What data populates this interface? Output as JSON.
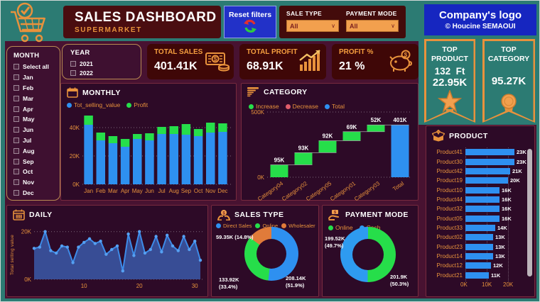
{
  "header": {
    "title": "SALES DASHBOARD",
    "subtitle": "SUPERMARKET",
    "reset_button": "Reset filters",
    "sale_type_label": "SALE TYPE",
    "sale_type_value": "All",
    "payment_mode_label": "PAYMENT MODE",
    "payment_mode_value": "All",
    "company": "Company's logo",
    "author": "© Houcine SEMAOUI"
  },
  "slicers": {
    "month": {
      "title": "MONTH",
      "items": [
        "Select all",
        "Jan",
        "Feb",
        "Mar",
        "Apr",
        "May",
        "Jun",
        "Jul",
        "Aug",
        "Sep",
        "Oct",
        "Nov",
        "Dec"
      ]
    },
    "year": {
      "title": "YEAR",
      "items": [
        "2021",
        "2022"
      ]
    }
  },
  "kpis": [
    {
      "label": "TOTAL SALES",
      "value": "401.41K",
      "icon": "money-banknote-icon"
    },
    {
      "label": "TOTAL PROFIT",
      "value": "68.91K",
      "icon": "growth-chart-icon"
    },
    {
      "label": "PROFIT %",
      "value": "21 %",
      "icon": "piggy-bank-icon"
    }
  ],
  "banners": {
    "top_product": {
      "title": "TOP PRODUCT",
      "line1": "132  Ft",
      "line2": "22.95K",
      "icon": "trophy-star-icon"
    },
    "top_category": {
      "title": "TOP CATEGORY",
      "value": "95.27K",
      "icon": "medal-icon"
    }
  },
  "colors": {
    "teal": "#2C7B73",
    "page_bg": "#481231",
    "panel_bg": "#2D0A27",
    "accent_orange": "#E8923C",
    "bar_blue": "#2E90F0",
    "bar_green": "#26DE4A",
    "decrease_red": "#E05C6A",
    "donut_orange": "#E07B3A",
    "area_blue": "#39549E",
    "reset_blue": "#2231C8",
    "logo_blue": "#1626C0",
    "card_bg": "#3F0707",
    "kpi_label_orange": "#F59E3F"
  },
  "chart_data": [
    {
      "id": "monthly",
      "type": "bar",
      "stacked": true,
      "title": "MONTHLY",
      "categories": [
        "Jan",
        "Feb",
        "Mar",
        "Apr",
        "May",
        "Jun",
        "Jul",
        "Aug",
        "Sep",
        "Oct",
        "Nov",
        "Dec"
      ],
      "series": [
        {
          "name": "Tot_selling_value",
          "color": "#2E90F0",
          "values": [
            42,
            31,
            29,
            26.5,
            32,
            31,
            35.5,
            35.5,
            35,
            34,
            36.5,
            37
          ]
        },
        {
          "name": "Profit",
          "color": "#26DE4A",
          "values": [
            6.5,
            5.5,
            5,
            5.5,
            3.5,
            5,
            5,
            5.5,
            7.5,
            5,
            7,
            6
          ]
        }
      ],
      "unit": "K",
      "ymax": 50,
      "yticks": [
        0,
        20,
        40
      ],
      "grid": "dotted",
      "legend_position": "top"
    },
    {
      "id": "category",
      "type": "waterfall",
      "title": "CATEGORY",
      "legend": [
        {
          "name": "Increase",
          "color": "#26DE4A"
        },
        {
          "name": "Decrease",
          "color": "#E05C6A"
        },
        {
          "name": "Total",
          "color": "#2E90F0"
        }
      ],
      "categories": [
        "Category04",
        "Category02",
        "Category05",
        "Category01",
        "Category03",
        "Total"
      ],
      "values": [
        95,
        93,
        92,
        69,
        52,
        401
      ],
      "labels": [
        "95K",
        "93K",
        "92K",
        "69K",
        "52K",
        "401K"
      ],
      "unit": "K",
      "ymax": 500,
      "yticks": [
        0,
        500
      ],
      "grid": "dotted"
    },
    {
      "id": "product",
      "type": "bar-horizontal",
      "title": "PRODUCT",
      "categories": [
        "Product41",
        "Product30",
        "Product42",
        "Product19",
        "Product10",
        "Product44",
        "Product32",
        "Product05",
        "Product33",
        "Product02",
        "Product23",
        "Product14",
        "Product12",
        "Product21"
      ],
      "values": [
        23,
        23,
        21,
        20,
        16,
        16,
        16,
        16,
        14,
        13,
        13,
        13,
        12,
        11
      ],
      "labels": [
        "23K",
        "23K",
        "21K",
        "20K",
        "16K",
        "16K",
        "16K",
        "16K",
        "14K",
        "13K",
        "13K",
        "13K",
        "12K",
        "11K"
      ],
      "bar_color": "#2E90F0",
      "xticks": [
        0,
        10,
        20
      ],
      "xtick_labels": [
        "0K",
        "10K",
        "20K"
      ],
      "xmax": 26,
      "scrollbar": true
    },
    {
      "id": "daily",
      "type": "line-area",
      "title": "DAILY",
      "ylabel": "Total selling value",
      "x": [
        1,
        2,
        3,
        4,
        5,
        6,
        7,
        8,
        9,
        10,
        11,
        12,
        13,
        14,
        15,
        16,
        17,
        18,
        19,
        20,
        21,
        22,
        23,
        24,
        25,
        26,
        27,
        28,
        29,
        30,
        31
      ],
      "values": [
        13,
        13.5,
        20,
        12,
        11,
        14,
        13.5,
        7,
        13.5,
        15.5,
        17,
        15,
        16,
        10.5,
        12.5,
        14,
        3.5,
        19,
        10,
        20,
        11,
        12.5,
        18,
        11.5,
        18.5,
        14,
        12,
        18,
        12.5,
        16,
        8
      ],
      "unit": "K",
      "ymax": 22,
      "yticks": [
        0,
        20
      ],
      "ytick_labels": [
        "0K",
        "20K"
      ],
      "xticks": [
        10,
        20,
        30
      ],
      "line_color": "#3D8BE8",
      "marker_color": "#55A0F2",
      "area_color": "#39549E",
      "grid": "dotted"
    },
    {
      "id": "sales_type",
      "type": "donut",
      "title": "SALES TYPE",
      "slices": [
        {
          "name": "Direct Sales",
          "color": "#2E90F0",
          "value": "208.14K",
          "pct": 51.9,
          "callout": [
            "208.14K",
            "(51.9%)"
          ],
          "callout_pos": "bottom-right"
        },
        {
          "name": "Online",
          "color": "#26DE4A",
          "value": "133.92K",
          "pct": 33.4,
          "callout": [
            "133.92K",
            "(33.4%)"
          ],
          "callout_pos": "bottom-left"
        },
        {
          "name": "Wholesaler",
          "color": "#E07B3A",
          "value": "59.35K",
          "pct": 14.8,
          "callout": [
            "59.35K (14.8%)"
          ],
          "callout_pos": "top-left"
        }
      ]
    },
    {
      "id": "payment_mode",
      "type": "donut",
      "title": "PAYMENT MODE",
      "slices": [
        {
          "name": "Online",
          "color": "#26DE4A",
          "value": "201.9K",
          "pct": 50.3,
          "callout": [
            "201.9K",
            "(50.3%)"
          ],
          "callout_pos": "bottom-right"
        },
        {
          "name": "Cash",
          "color": "#2E9BF0",
          "value": "199.52K",
          "pct": 49.7,
          "callout": [
            "199.52K",
            "(49.7%)"
          ],
          "callout_pos": "top-left"
        }
      ]
    }
  ]
}
